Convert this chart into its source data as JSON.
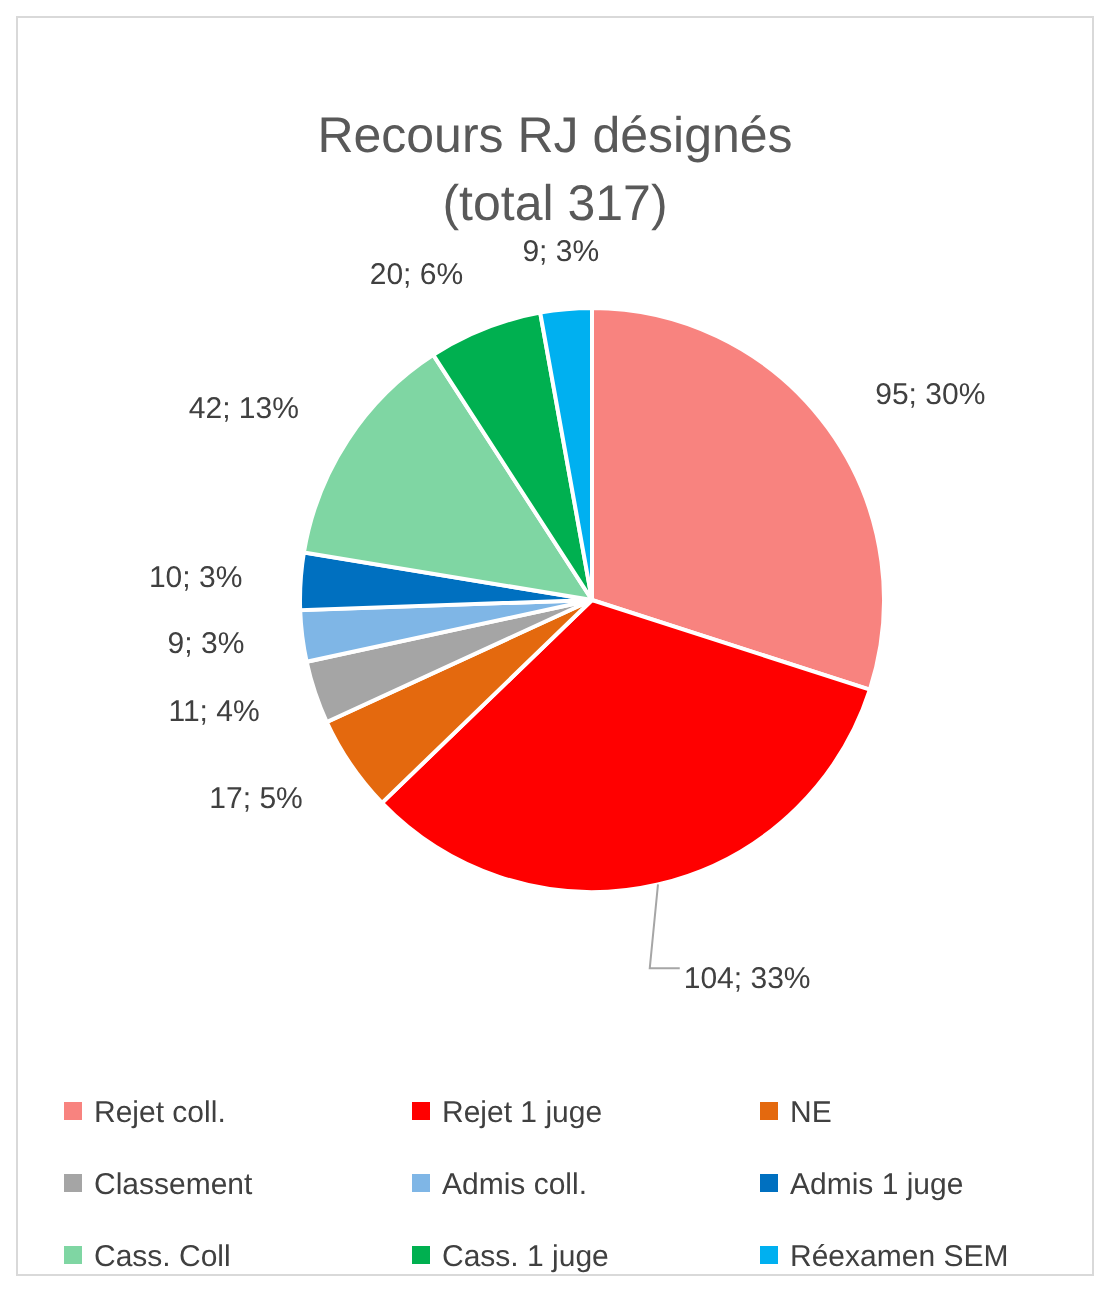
{
  "chart_data": {
    "type": "pie",
    "title": "Recours RJ désignés",
    "subtitle": "(total 317)",
    "categories": [
      "Rejet coll.",
      "Rejet 1 juge",
      "NE",
      "Classement",
      "Admis coll.",
      "Admis 1 juge",
      "Cass. Coll",
      "Cass. 1 juge",
      "Réexamen SEM"
    ],
    "values": [
      95,
      104,
      17,
      11,
      9,
      10,
      42,
      20,
      9
    ],
    "value_labels": [
      "95; 30%",
      "104; 33%",
      "17; 5%",
      "11; 4%",
      "9; 3%",
      "10; 3%",
      "42; 13%",
      "20; 6%",
      "9; 3%"
    ],
    "colors": [
      "#f8837f",
      "#ff0000",
      "#e4690e",
      "#a5a5a5",
      "#7fb6e6",
      "#0070c0",
      "#7fd6a3",
      "#00b050",
      "#00b0f0"
    ],
    "legend": "bottom"
  }
}
